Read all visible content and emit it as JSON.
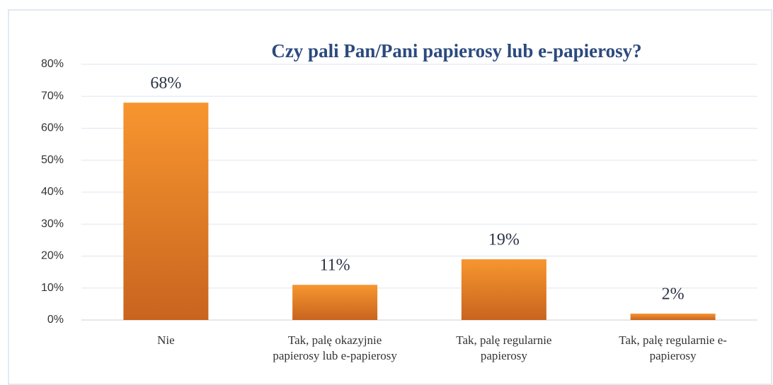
{
  "chart_data": {
    "type": "bar",
    "title": "Czy pali Pan/Pani papierosy lub e-papierosy?",
    "categories": [
      "Nie",
      "Tak, palę okazyjnie papierosy lub e-papierosy",
      "Tak, palę regularnie papierosy",
      "Tak, palę regularnie e-papierosy"
    ],
    "values": [
      68,
      11,
      19,
      2
    ],
    "value_labels": [
      "68%",
      "11%",
      "19%",
      "2%"
    ],
    "color": "#f7962f",
    "ylim": [
      0,
      80
    ],
    "yticks": [
      {
        "value": 0,
        "label": "0%"
      },
      {
        "value": 10,
        "label": "10%"
      },
      {
        "value": 20,
        "label": "20%"
      },
      {
        "value": 30,
        "label": "30%"
      },
      {
        "value": 40,
        "label": "40%"
      },
      {
        "value": 50,
        "label": "50%"
      },
      {
        "value": 60,
        "label": "60%"
      },
      {
        "value": 70,
        "label": "70%"
      },
      {
        "value": 80,
        "label": "80%"
      }
    ],
    "grid": true
  }
}
